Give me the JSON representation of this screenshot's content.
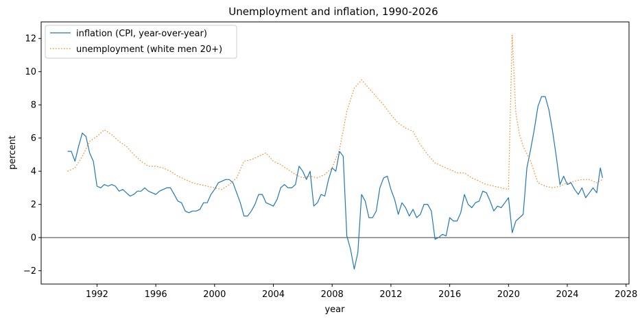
{
  "chart_data": {
    "type": "line",
    "title": "Unemployment and inflation, 1990-2026",
    "xlabel": "year",
    "ylabel": "percent",
    "xlim": [
      1988.2,
      2028.2
    ],
    "ylim": [
      -2.8,
      13.0
    ],
    "xticks": [
      1992,
      1996,
      2000,
      2004,
      2008,
      2012,
      2016,
      2020,
      2024,
      2028
    ],
    "yticks": [
      -2,
      0,
      2,
      4,
      6,
      8,
      10,
      12
    ],
    "zero_line": true,
    "grid": false,
    "legend_position": "top-left",
    "series": [
      {
        "name": "inflation (CPI, year-over-year)",
        "style": "solid",
        "color": "#1f77b4",
        "points": [
          [
            1990.0,
            5.2
          ],
          [
            1990.25,
            5.2
          ],
          [
            1990.5,
            4.6
          ],
          [
            1990.75,
            5.5
          ],
          [
            1991.0,
            6.3
          ],
          [
            1991.25,
            6.1
          ],
          [
            1991.5,
            5.1
          ],
          [
            1991.75,
            4.6
          ],
          [
            1992.0,
            3.1
          ],
          [
            1992.25,
            3.0
          ],
          [
            1992.5,
            3.2
          ],
          [
            1992.75,
            3.1
          ],
          [
            1993.0,
            3.2
          ],
          [
            1993.25,
            3.1
          ],
          [
            1993.5,
            2.8
          ],
          [
            1993.75,
            2.9
          ],
          [
            1994.0,
            2.7
          ],
          [
            1994.25,
            2.5
          ],
          [
            1994.5,
            2.6
          ],
          [
            1994.75,
            2.8
          ],
          [
            1995.0,
            2.8
          ],
          [
            1995.25,
            3.0
          ],
          [
            1995.5,
            2.8
          ],
          [
            1995.75,
            2.7
          ],
          [
            1996.0,
            2.6
          ],
          [
            1996.25,
            2.8
          ],
          [
            1996.5,
            2.9
          ],
          [
            1996.75,
            3.0
          ],
          [
            1997.0,
            3.0
          ],
          [
            1997.25,
            2.6
          ],
          [
            1997.5,
            2.2
          ],
          [
            1997.75,
            2.1
          ],
          [
            1998.0,
            1.6
          ],
          [
            1998.25,
            1.5
          ],
          [
            1998.5,
            1.6
          ],
          [
            1998.75,
            1.6
          ],
          [
            1999.0,
            1.7
          ],
          [
            1999.25,
            2.1
          ],
          [
            1999.5,
            2.1
          ],
          [
            1999.75,
            2.6
          ],
          [
            2000.0,
            2.9
          ],
          [
            2000.25,
            3.3
          ],
          [
            2000.5,
            3.4
          ],
          [
            2000.75,
            3.5
          ],
          [
            2001.0,
            3.5
          ],
          [
            2001.25,
            3.3
          ],
          [
            2001.5,
            2.7
          ],
          [
            2001.75,
            2.1
          ],
          [
            2002.0,
            1.3
          ],
          [
            2002.25,
            1.3
          ],
          [
            2002.5,
            1.6
          ],
          [
            2002.75,
            2.0
          ],
          [
            2003.0,
            2.6
          ],
          [
            2003.25,
            2.6
          ],
          [
            2003.5,
            2.1
          ],
          [
            2003.75,
            2.0
          ],
          [
            2004.0,
            1.9
          ],
          [
            2004.25,
            2.3
          ],
          [
            2004.5,
            3.0
          ],
          [
            2004.75,
            3.2
          ],
          [
            2005.0,
            3.0
          ],
          [
            2005.25,
            3.0
          ],
          [
            2005.5,
            3.2
          ],
          [
            2005.75,
            4.3
          ],
          [
            2006.0,
            4.0
          ],
          [
            2006.25,
            3.5
          ],
          [
            2006.5,
            4.0
          ],
          [
            2006.75,
            1.9
          ],
          [
            2007.0,
            2.1
          ],
          [
            2007.25,
            2.6
          ],
          [
            2007.5,
            2.5
          ],
          [
            2007.75,
            3.5
          ],
          [
            2008.0,
            4.2
          ],
          [
            2008.25,
            4.0
          ],
          [
            2008.5,
            5.2
          ],
          [
            2008.75,
            4.9
          ],
          [
            2009.0,
            0.1
          ],
          [
            2009.25,
            -0.7
          ],
          [
            2009.5,
            -1.9
          ],
          [
            2009.75,
            -0.9
          ],
          [
            2010.0,
            2.6
          ],
          [
            2010.25,
            2.2
          ],
          [
            2010.5,
            1.2
          ],
          [
            2010.75,
            1.2
          ],
          [
            2011.0,
            1.6
          ],
          [
            2011.25,
            3.0
          ],
          [
            2011.5,
            3.6
          ],
          [
            2011.75,
            3.7
          ],
          [
            2012.0,
            2.9
          ],
          [
            2012.25,
            2.3
          ],
          [
            2012.5,
            1.4
          ],
          [
            2012.75,
            2.1
          ],
          [
            2013.0,
            1.8
          ],
          [
            2013.25,
            1.3
          ],
          [
            2013.5,
            1.7
          ],
          [
            2013.75,
            1.2
          ],
          [
            2014.0,
            1.4
          ],
          [
            2014.25,
            2.0
          ],
          [
            2014.5,
            2.0
          ],
          [
            2014.75,
            1.6
          ],
          [
            2015.0,
            -0.1
          ],
          [
            2015.25,
            0.0
          ],
          [
            2015.5,
            0.2
          ],
          [
            2015.75,
            0.1
          ],
          [
            2016.0,
            1.2
          ],
          [
            2016.25,
            1.0
          ],
          [
            2016.5,
            1.0
          ],
          [
            2016.75,
            1.5
          ],
          [
            2017.0,
            2.6
          ],
          [
            2017.25,
            2.0
          ],
          [
            2017.5,
            1.8
          ],
          [
            2017.75,
            2.1
          ],
          [
            2018.0,
            2.2
          ],
          [
            2018.25,
            2.8
          ],
          [
            2018.5,
            2.7
          ],
          [
            2018.75,
            2.2
          ],
          [
            2019.0,
            1.6
          ],
          [
            2019.25,
            1.9
          ],
          [
            2019.5,
            1.8
          ],
          [
            2019.75,
            2.1
          ],
          [
            2020.0,
            2.4
          ],
          [
            2020.25,
            0.3
          ],
          [
            2020.5,
            1.0
          ],
          [
            2020.75,
            1.2
          ],
          [
            2021.0,
            1.4
          ],
          [
            2021.25,
            4.2
          ],
          [
            2021.5,
            5.3
          ],
          [
            2021.75,
            6.5
          ],
          [
            2022.0,
            7.9
          ],
          [
            2022.25,
            8.5
          ],
          [
            2022.5,
            8.5
          ],
          [
            2022.75,
            7.7
          ],
          [
            2023.0,
            6.4
          ],
          [
            2023.25,
            4.9
          ],
          [
            2023.5,
            3.2
          ],
          [
            2023.75,
            3.7
          ],
          [
            2024.0,
            3.2
          ],
          [
            2024.25,
            3.3
          ],
          [
            2024.5,
            2.9
          ],
          [
            2024.75,
            2.6
          ],
          [
            2025.0,
            3.0
          ],
          [
            2025.25,
            2.4
          ],
          [
            2025.5,
            2.7
          ],
          [
            2025.75,
            3.0
          ],
          [
            2026.0,
            2.7
          ],
          [
            2026.25,
            4.2
          ],
          [
            2026.4,
            3.6
          ]
        ]
      },
      {
        "name": "unemployment (white men 20+)",
        "style": "dotted",
        "color": "#ff7f0e",
        "points": [
          [
            1990.0,
            4.0
          ],
          [
            1990.5,
            4.2
          ],
          [
            1991.0,
            4.9
          ],
          [
            1991.5,
            5.8
          ],
          [
            1992.0,
            6.1
          ],
          [
            1992.5,
            6.5
          ],
          [
            1993.0,
            6.2
          ],
          [
            1993.5,
            5.8
          ],
          [
            1994.0,
            5.5
          ],
          [
            1994.5,
            5.0
          ],
          [
            1995.0,
            4.6
          ],
          [
            1995.5,
            4.3
          ],
          [
            1996.0,
            4.3
          ],
          [
            1996.5,
            4.2
          ],
          [
            1997.0,
            4.0
          ],
          [
            1997.5,
            3.7
          ],
          [
            1998.0,
            3.5
          ],
          [
            1998.5,
            3.3
          ],
          [
            1999.0,
            3.2
          ],
          [
            1999.5,
            3.1
          ],
          [
            2000.0,
            3.0
          ],
          [
            2000.5,
            2.9
          ],
          [
            2001.0,
            3.2
          ],
          [
            2001.5,
            3.6
          ],
          [
            2002.0,
            4.6
          ],
          [
            2002.5,
            4.7
          ],
          [
            2003.0,
            4.9
          ],
          [
            2003.5,
            5.1
          ],
          [
            2004.0,
            4.6
          ],
          [
            2004.5,
            4.4
          ],
          [
            2005.0,
            4.1
          ],
          [
            2005.5,
            3.8
          ],
          [
            2006.0,
            3.6
          ],
          [
            2006.5,
            3.7
          ],
          [
            2007.0,
            3.6
          ],
          [
            2007.5,
            3.8
          ],
          [
            2008.0,
            4.2
          ],
          [
            2008.5,
            5.3
          ],
          [
            2009.0,
            7.6
          ],
          [
            2009.5,
            9.0
          ],
          [
            2010.0,
            9.5
          ],
          [
            2010.5,
            9.0
          ],
          [
            2011.0,
            8.5
          ],
          [
            2011.5,
            8.0
          ],
          [
            2012.0,
            7.4
          ],
          [
            2012.5,
            6.9
          ],
          [
            2013.0,
            6.6
          ],
          [
            2013.5,
            6.4
          ],
          [
            2014.0,
            5.6
          ],
          [
            2014.5,
            5.0
          ],
          [
            2015.0,
            4.5
          ],
          [
            2015.5,
            4.3
          ],
          [
            2016.0,
            4.1
          ],
          [
            2016.5,
            3.9
          ],
          [
            2017.0,
            3.9
          ],
          [
            2017.5,
            3.6
          ],
          [
            2018.0,
            3.4
          ],
          [
            2018.5,
            3.2
          ],
          [
            2019.0,
            3.1
          ],
          [
            2019.5,
            3.0
          ],
          [
            2020.0,
            2.9
          ],
          [
            2020.25,
            12.2
          ],
          [
            2020.5,
            7.5
          ],
          [
            2020.75,
            6.2
          ],
          [
            2021.0,
            5.5
          ],
          [
            2021.5,
            4.6
          ],
          [
            2022.0,
            3.3
          ],
          [
            2022.5,
            3.1
          ],
          [
            2023.0,
            3.0
          ],
          [
            2023.5,
            3.1
          ],
          [
            2024.0,
            3.3
          ],
          [
            2024.5,
            3.4
          ],
          [
            2025.0,
            3.5
          ],
          [
            2025.5,
            3.5
          ],
          [
            2026.0,
            3.3
          ],
          [
            2026.4,
            3.5
          ]
        ]
      }
    ]
  }
}
